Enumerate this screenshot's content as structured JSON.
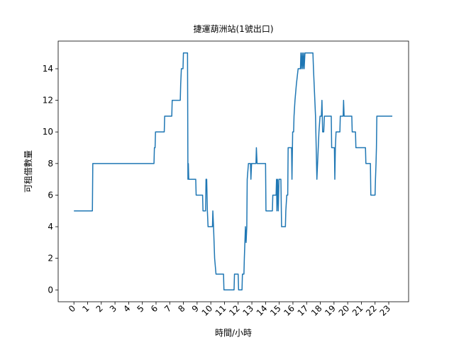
{
  "chart_data": {
    "type": "line",
    "title": "捷運葫洲站(1號出口)",
    "x_label": "時間/小時",
    "y_label": "可租借數量",
    "xlim": [
      -1.15,
      24.45
    ],
    "ylim": [
      -0.75,
      15.75
    ],
    "xticks": [
      0,
      1,
      2,
      3,
      4,
      5,
      6,
      7,
      8,
      9,
      10,
      11,
      12,
      13,
      14,
      15,
      16,
      17,
      18,
      19,
      20,
      21,
      22,
      23
    ],
    "yticks": [
      0,
      2,
      4,
      6,
      8,
      10,
      12,
      14
    ],
    "series": [
      {
        "color": "#1f77b4",
        "x": [
          0,
          1.35,
          1.38,
          5.85,
          5.88,
          5.93,
          5.96,
          6.6,
          6.63,
          7.15,
          7.18,
          7.77,
          7.8,
          7.85,
          7.97,
          8.0,
          8.3,
          8.33,
          8.36,
          8.39,
          8.9,
          8.93,
          9.4,
          9.43,
          9.62,
          9.65,
          9.7,
          9.75,
          9.8,
          10.12,
          10.15,
          10.2,
          10.28,
          10.38,
          10.93,
          10.96,
          11.7,
          11.73,
          12.0,
          12.03,
          12.28,
          12.31,
          12.42,
          12.45,
          12.53,
          12.58,
          12.63,
          12.66,
          12.75,
          12.9,
          12.93,
          12.98,
          13.3,
          13.33,
          13.38,
          13.45,
          14.0,
          14.03,
          14.5,
          14.53,
          14.77,
          14.8,
          14.83,
          14.88,
          14.93,
          14.98,
          15.12,
          15.17,
          15.45,
          15.48,
          15.55,
          15.62,
          15.65,
          15.9,
          15.93,
          15.98,
          16.05,
          16.08,
          16.15,
          16.25,
          16.38,
          16.55,
          16.58,
          16.62,
          16.68,
          16.72,
          16.78,
          16.82,
          16.88,
          17.05,
          17.46,
          17.5,
          17.55,
          17.6,
          17.65,
          17.75,
          17.8,
          17.9,
          17.98,
          18.08,
          18.12,
          18.17,
          18.25,
          18.3,
          18.8,
          18.83,
          19.03,
          19.06,
          19.1,
          19.15,
          19.43,
          19.46,
          19.67,
          19.7,
          19.74,
          20.3,
          20.33,
          20.57,
          20.6,
          21.3,
          21.33,
          21.66,
          21.69,
          22.0,
          22.03,
          22.07,
          22.1,
          22.13,
          23.26
        ],
        "values": [
          5,
          5,
          8,
          8,
          9,
          9,
          10,
          10,
          11,
          11,
          12,
          12,
          13,
          14,
          14,
          15,
          15,
          7,
          8,
          7,
          7,
          6,
          6,
          5,
          5,
          7,
          7,
          5,
          4,
          4,
          5,
          4,
          2,
          1,
          1,
          0,
          0,
          1,
          1,
          0,
          0,
          1,
          1,
          2,
          4,
          3,
          4,
          7,
          8,
          8,
          7,
          8,
          8,
          9,
          8,
          8,
          8,
          5,
          5,
          6,
          6,
          7,
          5,
          7,
          5,
          7,
          7,
          4,
          4,
          5,
          6,
          6,
          9,
          9,
          7,
          10,
          10,
          11,
          12,
          13,
          14,
          14,
          15,
          14,
          15,
          14,
          15,
          14,
          15,
          15,
          15,
          14,
          13,
          12,
          11,
          7,
          8,
          10,
          11,
          11,
          12,
          10,
          10,
          11,
          11,
          9,
          9,
          7,
          9,
          10,
          10,
          11,
          11,
          12,
          11,
          11,
          10,
          10,
          9,
          9,
          8,
          8,
          6,
          6,
          7,
          8,
          9,
          11,
          11
        ]
      }
    ]
  }
}
